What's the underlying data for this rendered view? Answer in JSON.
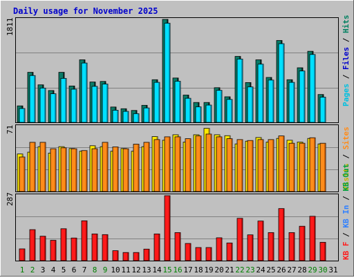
{
  "title": "Daily usage for November 2025",
  "colors": {
    "background": "#c0c0c0",
    "grid": "#808080",
    "title": "#0000cc",
    "pages_front": "#00e0ff",
    "pages_back": "#0a6a5a",
    "files_front": "#00c0e0",
    "visits_front": "#ffea00",
    "sites_front": "#ff8c1a",
    "kb_front": "#ff1a1a",
    "weekend_label": "#008000",
    "weekday_label": "#000000"
  },
  "chart_data": [
    {
      "type": "bar",
      "name": "hits-files-pages",
      "ymax_label": "1811",
      "legend": [
        {
          "text": "Pages",
          "color": "#00c0e0"
        },
        {
          "text": " / ",
          "color": "#000000"
        },
        {
          "text": "Files",
          "color": "#0000cc"
        },
        {
          "text": " / ",
          "color": "#000000"
        },
        {
          "text": "Hits",
          "color": "#008060"
        }
      ],
      "categories": [
        "1",
        "2",
        "3",
        "4",
        "5",
        "6",
        "7",
        "8",
        "9",
        "10",
        "11",
        "12",
        "13",
        "14",
        "15",
        "16",
        "17",
        "18",
        "19",
        "20",
        "21",
        "22",
        "23",
        "24",
        "25",
        "26",
        "27",
        "28",
        "29",
        "30",
        "31"
      ],
      "series": [
        {
          "name": "Hits",
          "values": [
            290,
            880,
            660,
            560,
            880,
            640,
            1100,
            710,
            720,
            270,
            240,
            210,
            300,
            750,
            1811,
            780,
            480,
            350,
            350,
            610,
            450,
            1160,
            700,
            1100,
            790,
            1440,
            750,
            960,
            1250,
            490,
            0
          ]
        },
        {
          "name": "Pages",
          "values": [
            280,
            860,
            640,
            540,
            810,
            620,
            1080,
            670,
            710,
            250,
            230,
            190,
            290,
            740,
            1780,
            760,
            460,
            310,
            340,
            600,
            440,
            1150,
            660,
            1060,
            780,
            1420,
            740,
            940,
            1230,
            480,
            0
          ]
        }
      ]
    },
    {
      "type": "bar",
      "name": "visits-sites",
      "ymax_label": "71",
      "legend": [
        {
          "text": "Visits",
          "color": "#c8b400"
        },
        {
          "text": " / ",
          "color": "#000000"
        },
        {
          "text": "Sites",
          "color": "#ff8c1a"
        }
      ],
      "categories": [
        "1",
        "2",
        "3",
        "4",
        "5",
        "6",
        "7",
        "8",
        "9",
        "10",
        "11",
        "12",
        "13",
        "14",
        "15",
        "16",
        "17",
        "18",
        "19",
        "20",
        "21",
        "22",
        "23",
        "24",
        "25",
        "26",
        "27",
        "28",
        "29",
        "30",
        "31"
      ],
      "series": [
        {
          "name": "Visits",
          "values": [
            41,
            43,
            49,
            42,
            49,
            47,
            44,
            50,
            49,
            44,
            47,
            44,
            49,
            60,
            56,
            62,
            54,
            62,
            69,
            62,
            61,
            52,
            55,
            59,
            54,
            58,
            56,
            54,
            58,
            52,
            0
          ]
        },
        {
          "name": "Sites",
          "values": [
            40,
            56,
            56,
            49,
            50,
            49,
            47,
            49,
            56,
            51,
            49,
            54,
            56,
            59,
            62,
            62,
            60,
            63,
            65,
            62,
            60,
            59,
            58,
            59,
            59,
            63,
            55,
            55,
            61,
            55,
            0
          ]
        }
      ]
    },
    {
      "type": "bar",
      "name": "kbytes",
      "ymax_label": "287",
      "legend": [
        {
          "text": "KB F",
          "color": "#ff1a1a"
        },
        {
          "text": " / ",
          "color": "#000000"
        },
        {
          "text": "KB In",
          "color": "#3080ff"
        },
        {
          "text": " / ",
          "color": "#000000"
        },
        {
          "text": "KB Out",
          "color": "#00a040"
        }
      ],
      "categories": [
        "1",
        "2",
        "3",
        "4",
        "5",
        "6",
        "7",
        "8",
        "9",
        "10",
        "11",
        "12",
        "13",
        "14",
        "15",
        "16",
        "17",
        "18",
        "19",
        "20",
        "21",
        "22",
        "23",
        "24",
        "25",
        "26",
        "27",
        "28",
        "29",
        "30",
        "31"
      ],
      "series": [
        {
          "name": "KB F",
          "values": [
            52,
            137,
            108,
            90,
            141,
            100,
            176,
            118,
            115,
            44,
            36,
            36,
            51,
            118,
            287,
            124,
            76,
            58,
            58,
            101,
            78,
            187,
            114,
            175,
            124,
            230,
            124,
            152,
            196,
            81,
            0
          ]
        }
      ]
    }
  ],
  "days": [
    {
      "label": "1",
      "weekend": true
    },
    {
      "label": "2",
      "weekend": true
    },
    {
      "label": "3",
      "weekend": false
    },
    {
      "label": "4",
      "weekend": false
    },
    {
      "label": "5",
      "weekend": false
    },
    {
      "label": "6",
      "weekend": false
    },
    {
      "label": "7",
      "weekend": false
    },
    {
      "label": "8",
      "weekend": true
    },
    {
      "label": "9",
      "weekend": true
    },
    {
      "label": "10",
      "weekend": false
    },
    {
      "label": "11",
      "weekend": false
    },
    {
      "label": "12",
      "weekend": false
    },
    {
      "label": "13",
      "weekend": false
    },
    {
      "label": "14",
      "weekend": false
    },
    {
      "label": "15",
      "weekend": true
    },
    {
      "label": "16",
      "weekend": true
    },
    {
      "label": "17",
      "weekend": false
    },
    {
      "label": "18",
      "weekend": false
    },
    {
      "label": "19",
      "weekend": false
    },
    {
      "label": "20",
      "weekend": false
    },
    {
      "label": "21",
      "weekend": false
    },
    {
      "label": "22",
      "weekend": true
    },
    {
      "label": "23",
      "weekend": true
    },
    {
      "label": "24",
      "weekend": false
    },
    {
      "label": "25",
      "weekend": false
    },
    {
      "label": "26",
      "weekend": false
    },
    {
      "label": "27",
      "weekend": false
    },
    {
      "label": "28",
      "weekend": false
    },
    {
      "label": "29",
      "weekend": true
    },
    {
      "label": "30",
      "weekend": true
    },
    {
      "label": "31",
      "weekend": false
    }
  ]
}
